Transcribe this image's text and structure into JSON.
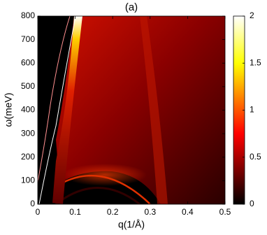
{
  "chart_data": {
    "type": "heatmap",
    "title": "(a)",
    "x_label": "q(1/Å)",
    "y_label": "ω(meV)",
    "xlim": [
      0,
      0.5
    ],
    "xticks": [
      0,
      0.1,
      0.2,
      0.3,
      0.4,
      0.5
    ],
    "ylim": [
      0,
      800
    ],
    "yticks": [
      0,
      100,
      200,
      300,
      400,
      500,
      600,
      700,
      800
    ],
    "colormap": "hot",
    "clim": [
      0,
      2
    ],
    "cticks": [
      0,
      0.5,
      1,
      1.5,
      2
    ]
  }
}
